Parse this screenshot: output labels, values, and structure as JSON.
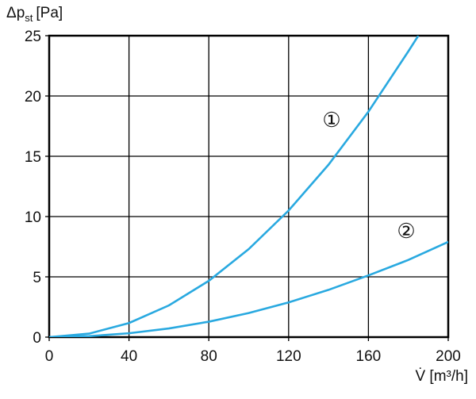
{
  "chart_data": {
    "type": "line",
    "y_label": {
      "main": "Δp",
      "sub": "st",
      "unit": "[Pa]"
    },
    "x_label": "V̇ [m³/h]",
    "series": [
      {
        "name": "1",
        "annotation": "①",
        "color": "#29a9e0",
        "x": [
          0,
          20,
          40,
          60,
          80,
          100,
          120,
          140,
          160,
          180,
          185
        ],
        "values": [
          0,
          0.29,
          1.17,
          2.63,
          4.67,
          7.3,
          10.5,
          14.3,
          18.7,
          23.7,
          25
        ]
      },
      {
        "name": "2",
        "annotation": "②",
        "color": "#29a9e0",
        "x": [
          0,
          20,
          40,
          60,
          80,
          100,
          120,
          140,
          160,
          180,
          200
        ],
        "values": [
          0,
          0.08,
          0.32,
          0.72,
          1.28,
          2.0,
          2.88,
          3.92,
          5.12,
          6.4,
          7.9
        ]
      }
    ],
    "xlim": [
      0,
      200
    ],
    "xticks": [
      0,
      40,
      80,
      120,
      160,
      200
    ],
    "ylim": [
      0,
      25
    ],
    "yticks": [
      0,
      5,
      10,
      15,
      20,
      25
    ],
    "grid": true
  }
}
